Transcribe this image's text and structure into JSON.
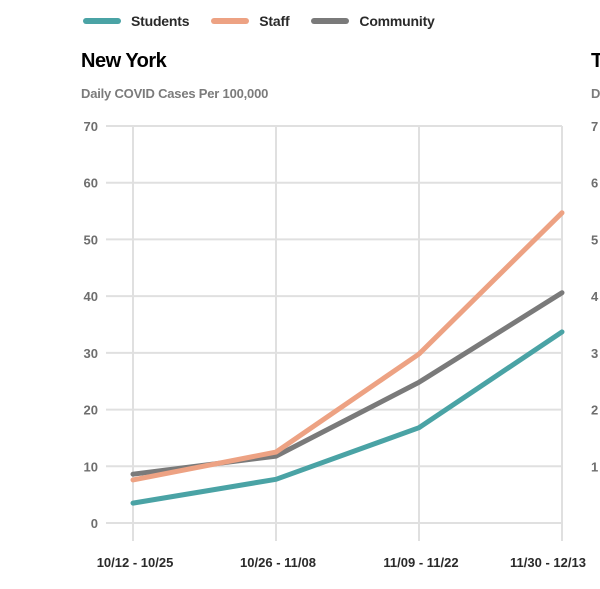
{
  "legend": [
    {
      "label": "Students",
      "color": "#4aa3a5"
    },
    {
      "label": "Staff",
      "color": "#eda283"
    },
    {
      "label": "Community",
      "color": "#7a7a7a"
    }
  ],
  "panel": {
    "title": "New York",
    "subtitle": "Daily COVID Cases Per 100,000"
  },
  "next_panel": {
    "title": "T",
    "subtitle": "D"
  },
  "chart_data": {
    "type": "line",
    "title": "New York",
    "subtitle": "Daily COVID Cases Per 100,000",
    "xlabel": "",
    "ylabel": "Daily COVID Cases Per 100,000",
    "categories": [
      "10/12 - 10/25",
      "10/26 - 11/08",
      "11/09 - 11/22",
      "11/30 - 12/13"
    ],
    "yticks": [
      0,
      10,
      20,
      30,
      40,
      50,
      60,
      70
    ],
    "ylim": [
      0,
      70
    ],
    "grid": true,
    "legend_position": "top",
    "series": [
      {
        "name": "Students",
        "color": "#4aa3a5",
        "values": [
          3.5,
          7.7,
          16.8,
          33.7
        ]
      },
      {
        "name": "Staff",
        "color": "#eda283",
        "values": [
          7.6,
          12.5,
          29.8,
          54.7
        ]
      },
      {
        "name": "Community",
        "color": "#7a7a7a",
        "values": [
          8.6,
          11.8,
          24.8,
          40.6
        ]
      }
    ]
  }
}
